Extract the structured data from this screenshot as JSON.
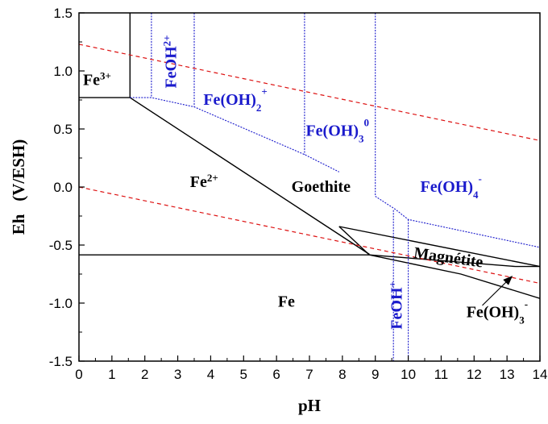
{
  "chart_data": {
    "type": "line",
    "title": "",
    "xlabel": "pH",
    "ylabel": "Eh   (V/ESH)",
    "xlim": [
      0,
      14
    ],
    "ylim": [
      -1.5,
      1.5
    ],
    "xticks": [
      "0",
      "1",
      "2",
      "3",
      "4",
      "5",
      "6",
      "7",
      "8",
      "9",
      "10",
      "11",
      "12",
      "13",
      "14"
    ],
    "yticks": [
      "-1.5",
      "-1.0",
      "-0.5",
      "0.0",
      "0.5",
      "1.0",
      "1.5"
    ],
    "grid": false,
    "colors": {
      "solid": "#000000",
      "aqueous": "#1a1acc",
      "water": "#dd1111"
    },
    "series": [
      {
        "style": "solid",
        "points": [
          [
            1.55,
            1.5
          ],
          [
            1.55,
            0.77
          ]
        ]
      },
      {
        "style": "solid",
        "points": [
          [
            0,
            0.77
          ],
          [
            1.55,
            0.77
          ],
          [
            8.82,
            -0.58
          ]
        ]
      },
      {
        "style": "solid",
        "points": [
          [
            0,
            -0.585
          ],
          [
            8.82,
            -0.585
          ],
          [
            13.25,
            -0.685
          ],
          [
            14,
            -0.685
          ]
        ]
      },
      {
        "style": "solid",
        "points": [
          [
            7.9,
            -0.34
          ],
          [
            14,
            -0.685
          ]
        ]
      },
      {
        "style": "solid",
        "points": [
          [
            7.9,
            -0.34
          ],
          [
            8.82,
            -0.585
          ]
        ]
      },
      {
        "style": "solid",
        "points": [
          [
            8.82,
            -0.585
          ],
          [
            11.6,
            -0.75
          ],
          [
            14,
            -0.96
          ]
        ]
      },
      {
        "style": "aqueous",
        "points": [
          [
            1.55,
            0.77
          ],
          [
            2.2,
            0.77
          ],
          [
            3.5,
            0.69
          ],
          [
            6.85,
            0.28
          ],
          [
            7.9,
            0.13
          ]
        ]
      },
      {
        "style": "aqueous",
        "points": [
          [
            9.0,
            -0.08
          ],
          [
            9.6,
            -0.19
          ],
          [
            10.0,
            -0.28
          ],
          [
            14,
            -0.52
          ]
        ]
      },
      {
        "style": "aqueous",
        "points": [
          [
            2.2,
            1.5
          ],
          [
            2.2,
            0.77
          ]
        ]
      },
      {
        "style": "aqueous",
        "points": [
          [
            3.5,
            1.5
          ],
          [
            3.5,
            0.69
          ]
        ]
      },
      {
        "style": "aqueous",
        "points": [
          [
            6.85,
            1.5
          ],
          [
            6.85,
            0.28
          ]
        ]
      },
      {
        "style": "aqueous",
        "points": [
          [
            9.0,
            1.5
          ],
          [
            9.0,
            -0.08
          ]
        ]
      },
      {
        "style": "aqueous",
        "points": [
          [
            9.55,
            -0.2
          ],
          [
            9.55,
            -1.5
          ]
        ]
      },
      {
        "style": "aqueous",
        "points": [
          [
            10.0,
            -0.28
          ],
          [
            10.0,
            -1.5
          ]
        ]
      },
      {
        "style": "water",
        "points": [
          [
            0,
            1.23
          ],
          [
            14,
            0.4
          ]
        ]
      },
      {
        "style": "water",
        "points": [
          [
            0,
            0.0
          ],
          [
            14,
            -0.83
          ]
        ]
      }
    ],
    "annotations": [
      {
        "label": "Fe",
        "sup": "3+",
        "sub": "",
        "x": 0.55,
        "y": 0.88,
        "color": "#000000",
        "rotate": 0
      },
      {
        "label": "FeOH",
        "sup": "2+",
        "sub": "",
        "x": 2.95,
        "y": 1.08,
        "color": "#1a1acc",
        "rotate": -90
      },
      {
        "label": "Fe(OH)",
        "sub": "2",
        "sup": "+",
        "x": 4.75,
        "y": 0.71,
        "color": "#1a1acc",
        "rotate": 0
      },
      {
        "label": "Fe(OH)",
        "sub": "3",
        "sup": "0",
        "x": 7.85,
        "y": 0.44,
        "color": "#1a1acc",
        "rotate": 0
      },
      {
        "label": "Fe",
        "sup": "2+",
        "sub": "",
        "x": 3.8,
        "y": 0.0,
        "color": "#000000",
        "rotate": 0
      },
      {
        "label": "Goethite",
        "sup": "",
        "sub": "",
        "x": 7.35,
        "y": -0.04,
        "color": "#000000",
        "rotate": 0
      },
      {
        "label": "Fe(OH)",
        "sub": "4",
        "sup": "-",
        "x": 11.3,
        "y": -0.04,
        "color": "#1a1acc",
        "rotate": 0
      },
      {
        "label": "Magnétite",
        "sup": "",
        "sub": "",
        "x": 11.2,
        "y": -0.65,
        "color": "#000000",
        "rotate": 8
      },
      {
        "label": "Fe",
        "sup": "",
        "sub": "",
        "x": 6.3,
        "y": -1.03,
        "color": "#000000",
        "rotate": 0
      },
      {
        "label": "FeOH",
        "sup": "+",
        "sub": "",
        "x": 9.8,
        "y": -1.02,
        "color": "#1a1acc",
        "rotate": -90
      },
      {
        "label": "Fe(OH)",
        "sub": "3",
        "sup": "-",
        "x": 12.7,
        "y": -1.12,
        "color": "#000000",
        "rotate": 0
      }
    ],
    "arrow": {
      "from": [
        12.25,
        -1.02
      ],
      "to": [
        13.15,
        -0.77
      ]
    }
  }
}
